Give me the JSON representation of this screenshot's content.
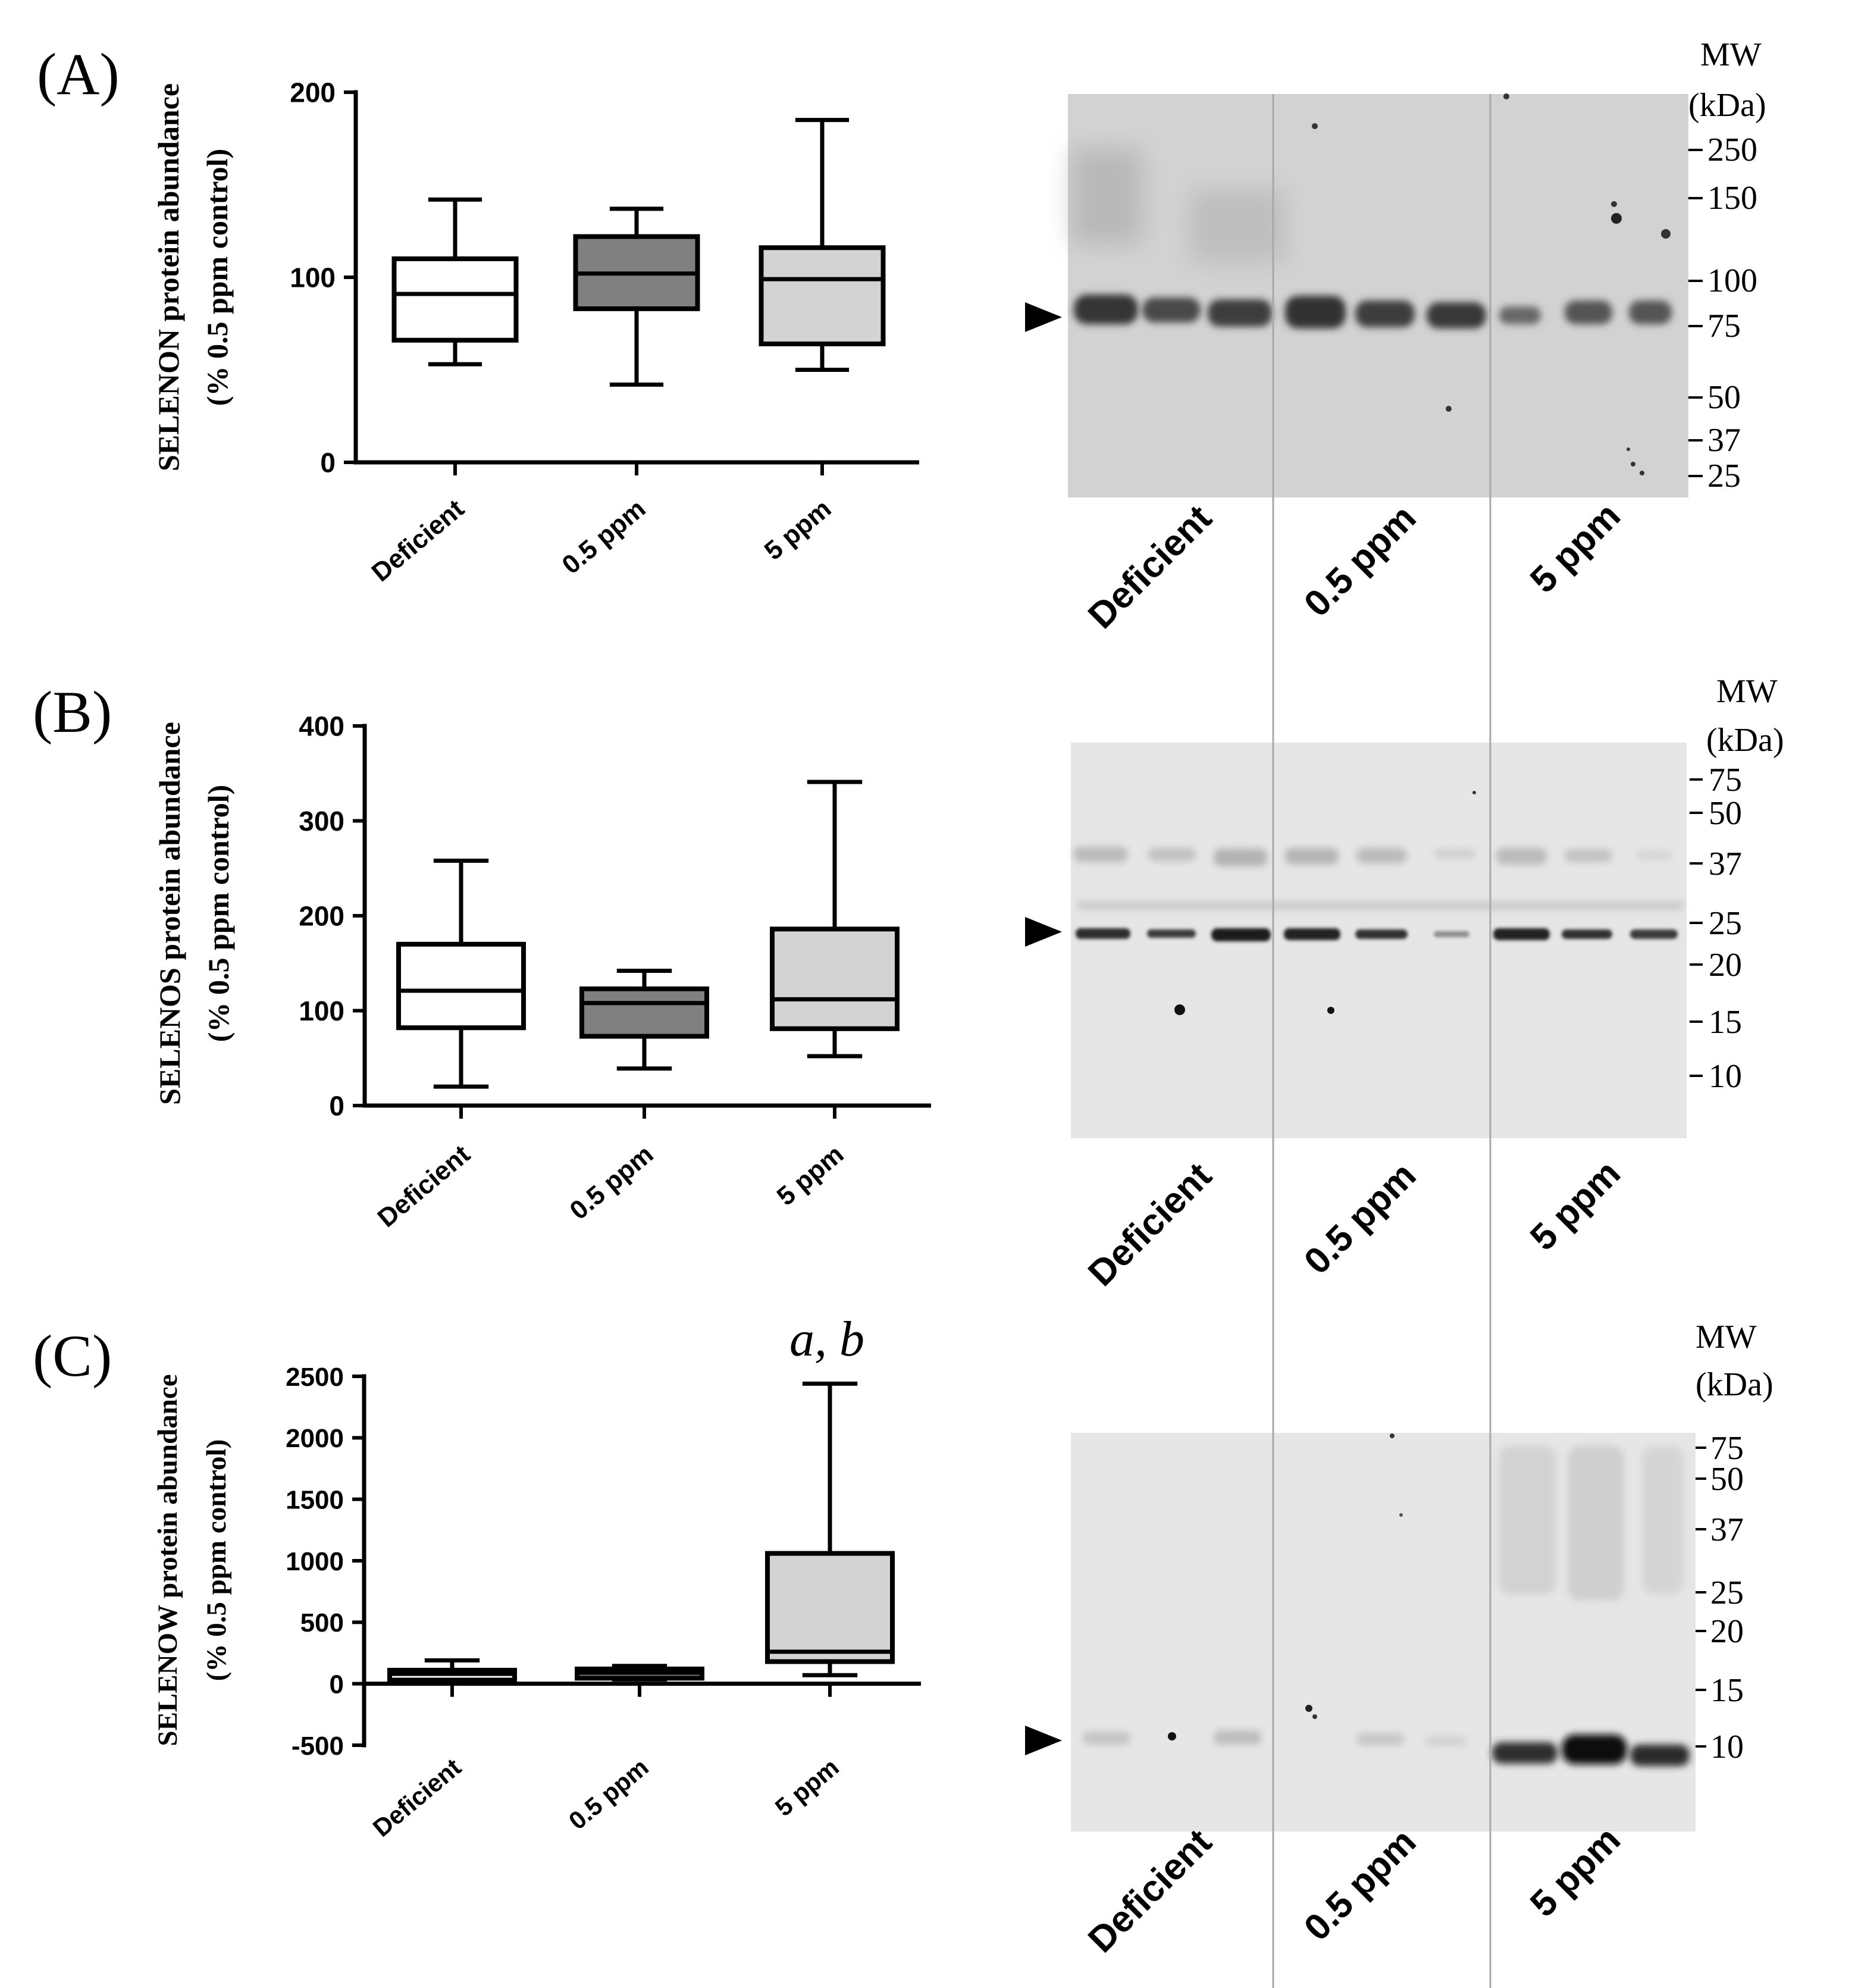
{
  "figure": {
    "panels": [
      {
        "label": "(A)",
        "blot_lane_labels": [
          "Deficient",
          "0.5 ppm",
          "5 ppm"
        ],
        "mw_header": [
          "MW",
          "(kDa)"
        ],
        "mw_markers": [
          "250",
          "150",
          "100",
          "75",
          "50",
          "37",
          "25"
        ],
        "significance": ""
      },
      {
        "label": "(B)",
        "blot_lane_labels": [
          "Deficient",
          "0.5 ppm",
          "5 ppm"
        ],
        "mw_header": [
          "MW",
          "(kDa)"
        ],
        "mw_markers": [
          "75",
          "50",
          "37",
          "25",
          "20",
          "15",
          "10"
        ],
        "significance": ""
      },
      {
        "label": "(C)",
        "blot_lane_labels": [
          "Deficient",
          "0.5 ppm",
          "5 ppm"
        ],
        "mw_header": [
          "MW",
          "(kDa)"
        ],
        "mw_markers": [
          "75",
          "50",
          "37",
          "25",
          "20",
          "15",
          "10"
        ],
        "significance": "a, b"
      }
    ]
  },
  "chart_data": [
    {
      "type": "box",
      "title": "",
      "ylabel": [
        "SELENON protein abundance",
        "(% 0.5 ppm control)"
      ],
      "xlabel": "",
      "categories": [
        "Deficient",
        "0.5 ppm",
        "5 ppm"
      ],
      "yticks": [
        0,
        100,
        200
      ],
      "ylim": [
        0,
        200
      ],
      "boxes": [
        {
          "name": "Deficient",
          "min": 53,
          "q1": 66,
          "median": 91,
          "q3": 110,
          "max": 142,
          "fill": "#ffffff"
        },
        {
          "name": "0.5 ppm",
          "min": 42,
          "q1": 83,
          "median": 102,
          "q3": 122,
          "max": 137,
          "fill": "#808080"
        },
        {
          "name": "5 ppm",
          "min": 50,
          "q1": 64,
          "median": 99,
          "q3": 116,
          "max": 185,
          "fill": "#d3d3d3"
        }
      ]
    },
    {
      "type": "box",
      "title": "",
      "ylabel": [
        "SELENOS protein abundance",
        "(% 0.5 ppm control)"
      ],
      "xlabel": "",
      "categories": [
        "Deficient",
        "0.5 ppm",
        "5 ppm"
      ],
      "yticks": [
        0,
        100,
        200,
        300,
        400
      ],
      "ylim": [
        0,
        400
      ],
      "boxes": [
        {
          "name": "Deficient",
          "min": 20,
          "q1": 82,
          "median": 121,
          "q3": 170,
          "max": 258,
          "fill": "#ffffff"
        },
        {
          "name": "0.5 ppm",
          "min": 39,
          "q1": 73,
          "median": 108,
          "q3": 123,
          "max": 142,
          "fill": "#808080"
        },
        {
          "name": "5 ppm",
          "min": 52,
          "q1": 81,
          "median": 112,
          "q3": 186,
          "max": 341,
          "fill": "#d3d3d3"
        }
      ]
    },
    {
      "type": "box",
      "title": "",
      "ylabel": [
        "SELENOW protein abundance",
        "(% 0.5 ppm control)"
      ],
      "xlabel": "",
      "categories": [
        "Deficient",
        "0.5 ppm",
        "5 ppm"
      ],
      "yticks": [
        -500,
        0,
        500,
        1000,
        1500,
        2000,
        2500
      ],
      "ylim": [
        -500,
        2500
      ],
      "boxes": [
        {
          "name": "Deficient",
          "min": 20,
          "q1": 30,
          "median": 80,
          "q3": 110,
          "max": 190,
          "fill": "#ffffff"
        },
        {
          "name": "0.5 ppm",
          "min": 35,
          "q1": 45,
          "median": 90,
          "q3": 120,
          "max": 145,
          "fill": "#808080"
        },
        {
          "name": "5 ppm",
          "min": 70,
          "q1": 180,
          "median": 260,
          "q3": 1060,
          "max": 2440,
          "fill": "#d3d3d3"
        }
      ]
    }
  ]
}
